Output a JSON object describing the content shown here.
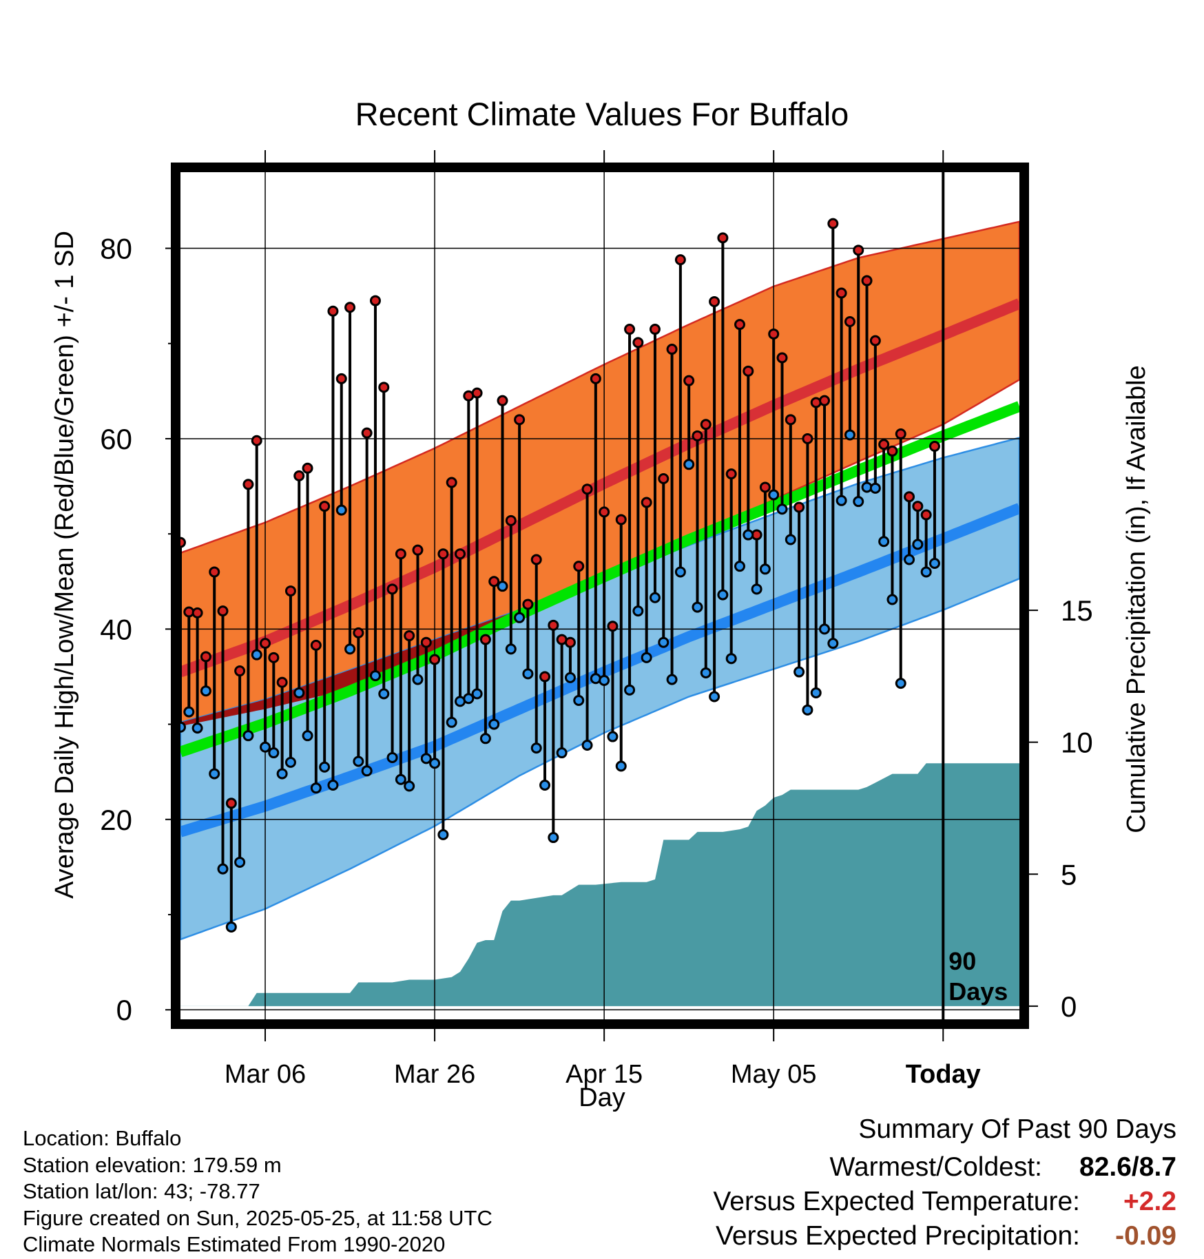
{
  "chart_data": {
    "type": "line",
    "title": "Recent Climate Values For Buffalo",
    "xlabel": "Day",
    "ylabel": "Average Daily High/Low/Mean (Red/Blue/Green) +/- 1 SD",
    "y2label": "Cumulative Precipitation (in), If Available",
    "x_tick_labels": [
      "Mar 06",
      "Mar 26",
      "Apr 15",
      "May 05",
      "Today"
    ],
    "x_tick_days": [
      10,
      30,
      50,
      70,
      90
    ],
    "xlim": [
      0,
      99
    ],
    "ylim": [
      -1,
      88
    ],
    "y_ticks": [
      0,
      20,
      40,
      60,
      80
    ],
    "y2lim": [
      -0.5,
      31.6
    ],
    "y2_ticks": [
      0,
      5,
      10,
      15
    ],
    "grid": true,
    "today_marker_label": [
      "90",
      "Days"
    ],
    "normals": {
      "days": [
        0,
        10,
        20,
        30,
        40,
        50,
        60,
        70,
        80,
        90,
        99
      ],
      "high_mean": [
        35.5,
        38.7,
        42.5,
        46.5,
        50.9,
        55.3,
        59.5,
        63.5,
        67.3,
        70.9,
        74.2
      ],
      "high_upper": [
        48.0,
        51.2,
        55.0,
        59.0,
        63.4,
        67.8,
        72.0,
        76.0,
        79.0,
        81.0,
        82.8
      ],
      "high_lower": [
        29.8,
        31.6,
        33.7,
        36.8,
        40.9,
        45.1,
        49.4,
        53.6,
        57.6,
        61.5,
        66.2
      ],
      "low_mean": [
        18.7,
        21.4,
        24.5,
        27.7,
        31.6,
        35.5,
        39.2,
        42.6,
        46.0,
        49.5,
        52.7
      ],
      "low_upper": [
        30.2,
        32.6,
        35.7,
        38.9,
        42.0,
        45.3,
        48.8,
        52.1,
        55.3,
        58.0,
        60.1
      ],
      "low_lower": [
        7.4,
        10.6,
        14.8,
        19.3,
        24.6,
        29.1,
        32.9,
        35.8,
        38.7,
        42.0,
        45.3
      ],
      "mean": [
        27.1,
        30.1,
        33.5,
        37.2,
        41.5,
        45.5,
        49.4,
        53.0,
        56.7,
        60.3,
        63.4
      ]
    },
    "daily_highs": [
      49.1,
      41.8,
      41.7,
      37.1,
      46.0,
      41.9,
      21.7,
      35.6,
      55.2,
      59.8,
      38.5,
      37.0,
      34.4,
      44.0,
      56.1,
      56.9,
      38.3,
      52.9,
      73.4,
      66.3,
      73.8,
      39.6,
      60.6,
      74.5,
      65.4,
      44.2,
      47.9,
      39.3,
      48.3,
      38.6,
      36.8,
      47.9,
      55.4,
      47.9,
      64.5,
      64.8,
      38.9,
      45.0,
      64.0,
      51.4,
      62.0,
      42.6,
      47.3,
      35.0,
      40.4,
      38.9,
      38.6,
      46.6,
      54.7,
      66.3,
      52.3,
      40.3,
      51.5,
      71.5,
      70.1,
      53.3,
      71.5,
      55.8,
      69.4,
      78.8,
      66.1,
      60.3,
      61.5,
      74.4,
      81.1,
      56.3,
      72.0,
      67.1,
      49.9,
      54.9,
      71.0,
      68.5,
      62.0,
      52.8,
      60.0,
      63.8,
      64.0,
      82.6,
      75.3,
      72.3,
      79.8,
      76.6,
      70.3,
      59.4,
      58.7,
      60.5,
      53.9,
      52.9,
      52.0,
      59.2
    ],
    "daily_lows": [
      29.7,
      31.3,
      29.6,
      33.5,
      24.8,
      14.8,
      8.7,
      15.5,
      28.8,
      37.3,
      27.6,
      27.0,
      24.8,
      26.0,
      33.3,
      28.8,
      23.3,
      25.5,
      23.6,
      52.5,
      37.9,
      26.1,
      25.1,
      35.1,
      33.2,
      26.5,
      24.2,
      23.5,
      34.7,
      26.4,
      25.9,
      18.4,
      30.2,
      32.4,
      32.7,
      33.2,
      28.5,
      30.0,
      44.5,
      37.9,
      41.2,
      35.3,
      27.5,
      23.6,
      18.1,
      27.0,
      34.9,
      32.5,
      27.8,
      34.8,
      34.6,
      28.7,
      25.6,
      33.6,
      41.9,
      37.0,
      43.3,
      38.6,
      34.7,
      46.0,
      57.3,
      42.3,
      35.4,
      32.9,
      43.6,
      36.9,
      46.6,
      49.9,
      44.2,
      46.3,
      54.1,
      52.6,
      49.4,
      35.5,
      31.5,
      33.3,
      40.0,
      38.5,
      53.5,
      60.4,
      53.4,
      54.9,
      54.8,
      49.2,
      43.1,
      34.3,
      47.3,
      48.9,
      46.0,
      46.9
    ],
    "cumulative_precip": {
      "days": [
        0,
        5,
        8,
        9,
        10,
        12,
        15,
        19,
        20,
        21,
        22,
        25,
        27,
        28,
        30,
        32,
        33,
        34,
        35,
        36,
        37,
        38,
        39,
        40,
        42,
        44,
        45,
        46,
        47,
        49,
        52,
        55,
        56,
        57,
        59,
        60,
        61,
        62,
        64,
        66,
        67,
        68,
        69,
        70,
        71,
        72,
        74,
        78,
        80,
        81,
        84,
        85,
        86,
        87,
        88,
        90,
        99
      ],
      "values": [
        0.0,
        0.0,
        0.0,
        0.5,
        0.5,
        0.5,
        0.5,
        0.5,
        0.5,
        0.9,
        0.9,
        0.9,
        1.0,
        1.0,
        1.0,
        1.1,
        1.3,
        1.8,
        2.4,
        2.5,
        2.5,
        3.6,
        4.0,
        4.0,
        4.1,
        4.2,
        4.2,
        4.4,
        4.6,
        4.6,
        4.7,
        4.7,
        4.8,
        6.3,
        6.3,
        6.3,
        6.6,
        6.6,
        6.6,
        6.7,
        6.8,
        7.4,
        7.6,
        7.9,
        8.0,
        8.2,
        8.2,
        8.2,
        8.2,
        8.3,
        8.8,
        8.8,
        8.8,
        8.8,
        9.2,
        9.2,
        9.2
      ]
    },
    "colors": {
      "high_band": "#f47a30",
      "high_band_edge": "#d42a20",
      "high_mean": "#d83036",
      "low_band": "#84c1e7",
      "low_band_edge": "#2e8ee4",
      "low_mean": "#2486f0",
      "mean": "#00e400",
      "overlap": "#9f1212",
      "precip": "#4a9aa3",
      "high_dot": "#d32020",
      "low_dot": "#2a8fe8"
    }
  },
  "info": {
    "location": "Location: Buffalo",
    "elevation": "Station elevation: 179.59 m",
    "latlon": "Station lat/lon: 43; -78.77",
    "created": "Figure created on Sun, 2025-05-25, at 11:58 UTC",
    "normals": "Climate Normals Estimated From 1990-2020"
  },
  "summary": {
    "title": "Summary Of Past 90 Days",
    "warmest_label": "Warmest/Coldest:",
    "warmest_value": "82.6/8.7",
    "temp_label": "Versus Expected Temperature:",
    "temp_value": "+2.2",
    "temp_color": "#d42a2a",
    "precip_label": "Versus Expected Precipitation:",
    "precip_value": "-0.09",
    "precip_color": "#a0522d"
  }
}
